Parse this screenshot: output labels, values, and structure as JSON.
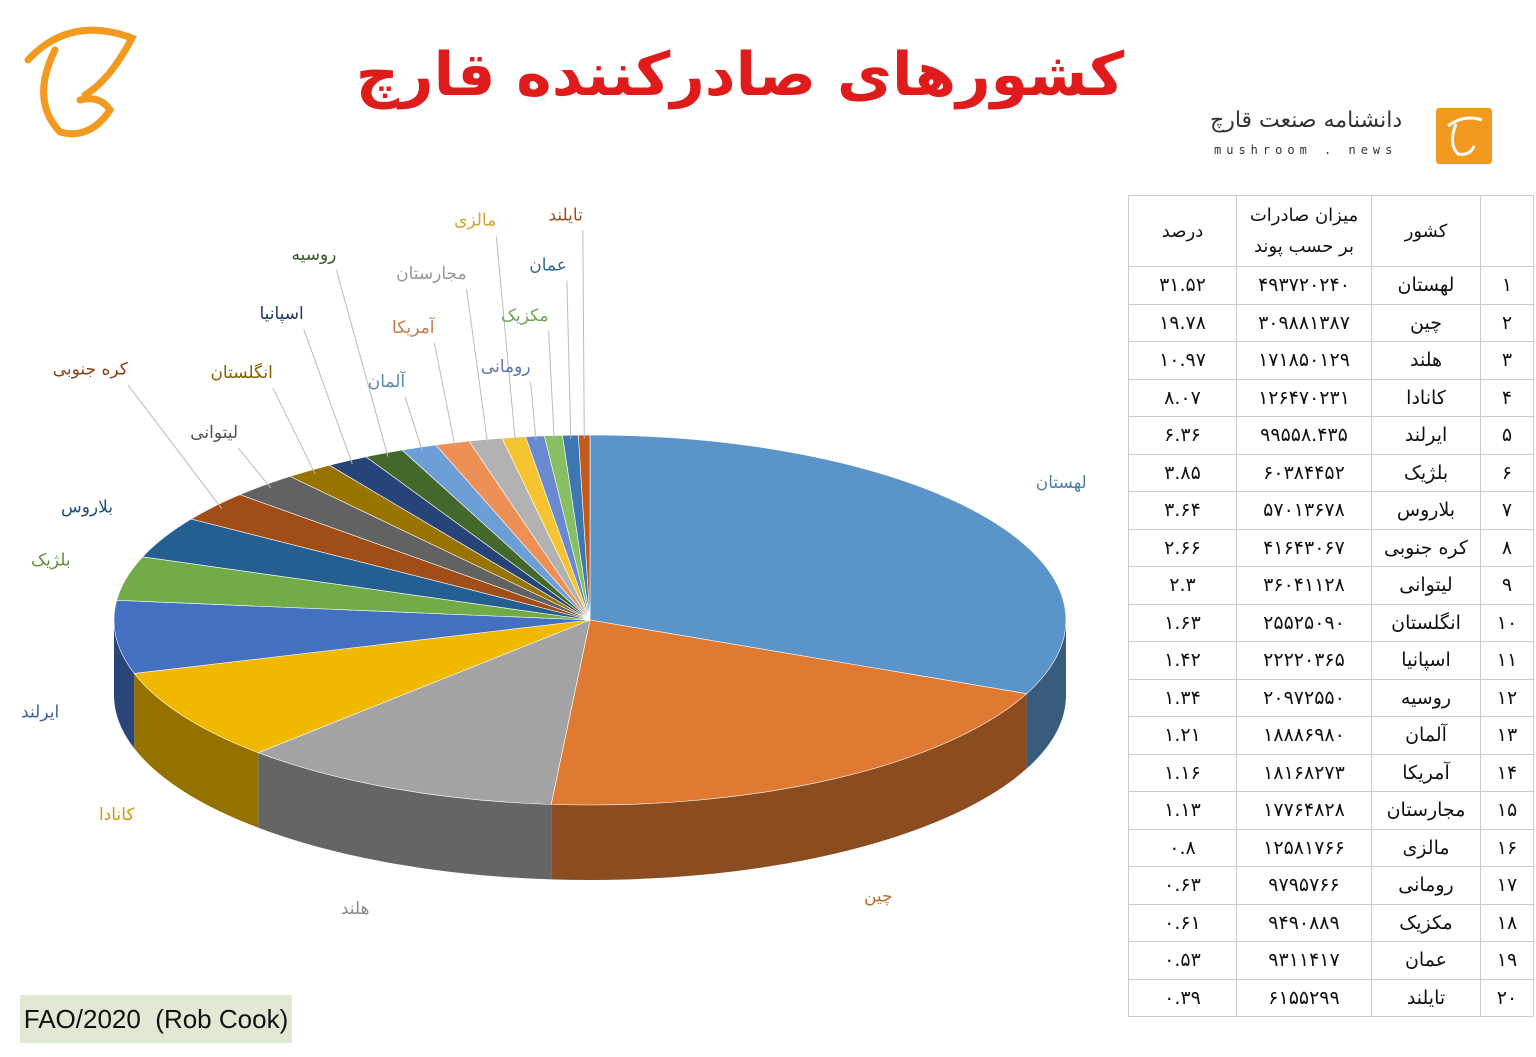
{
  "chart_data": {
    "type": "pie",
    "title": "کشورهای صادرکننده قارچ",
    "categories": [
      "لهستان",
      "چین",
      "هلند",
      "کانادا",
      "ایرلند",
      "بلژیک",
      "بلاروس",
      "کره جنوبی",
      "لیتوانی",
      "انگلستان",
      "اسپانیا",
      "روسیه",
      "آلمان",
      "آمریکا",
      "مجارستان",
      "مالزی",
      "رومانی",
      "مکزیک",
      "عمان",
      "تایلند"
    ],
    "values": [
      31.52,
      19.78,
      10.97,
      8.07,
      6.36,
      3.85,
      3.64,
      2.66,
      2.3,
      1.63,
      1.42,
      1.34,
      1.21,
      1.16,
      1.13,
      0.8,
      0.63,
      0.61,
      0.53,
      0.39
    ],
    "colors": [
      "#5b94c9",
      "#e07a33",
      "#a3a3a3",
      "#f1b800",
      "#4470c1",
      "#71ac48",
      "#255e91",
      "#a04d17",
      "#626262",
      "#997300",
      "#264478",
      "#43682b",
      "#6b9fd6",
      "#ee8f55",
      "#b2b2b2",
      "#f5c430",
      "#6a8ad0",
      "#88bf62",
      "#3d78b3",
      "#c25a1d"
    ]
  },
  "logo": {
    "name": "دانشنامه صنعت قارچ",
    "site": "mushroom . news"
  },
  "source": "FAO/2020  (Rob Cook)",
  "table": {
    "header": [
      "",
      "کشور",
      "میزان صادرات",
      "بر حسب پوند",
      "درصد"
    ],
    "rows": [
      [
        "۱",
        "لهستان",
        "۴۹۳۷۲۰۲۴۰",
        "۳۱.۵۲"
      ],
      [
        "۲",
        "چین",
        "۳۰۹۸۸۱۳۸۷",
        "۱۹.۷۸"
      ],
      [
        "۳",
        "هلند",
        "۱۷۱۸۵۰۱۲۹",
        "۱۰.۹۷"
      ],
      [
        "۴",
        "کانادا",
        "۱۲۶۴۷۰۲۳۱",
        "۸.۰۷"
      ],
      [
        "۵",
        "ایرلند",
        "۹۹۵۵۸.۴۳۵",
        "۶.۳۶"
      ],
      [
        "۶",
        "بلژیک",
        "۶۰۳۸۴۴۵۲",
        "۳.۸۵"
      ],
      [
        "۷",
        "بلاروس",
        "۵۷۰۱۳۶۷۸",
        "۳.۶۴"
      ],
      [
        "۸",
        "کره جنوبی",
        "۴۱۶۴۳۰۶۷",
        "۲.۶۶"
      ],
      [
        "۹",
        "لیتوانی",
        "۳۶۰۴۱۱۲۸",
        "۲.۳"
      ],
      [
        "۱۰",
        "انگلستان",
        "۲۵۵۲۵۰۹۰",
        "۱.۶۳"
      ],
      [
        "۱۱",
        "اسپانیا",
        "۲۲۲۲۰۳۶۵",
        "۱.۴۲"
      ],
      [
        "۱۲",
        "روسیه",
        "۲۰۹۷۲۵۵۰",
        "۱.۳۴"
      ],
      [
        "۱۳",
        "آلمان",
        "۱۸۸۸۶۹۸۰",
        "۱.۲۱"
      ],
      [
        "۱۴",
        "آمریکا",
        "۱۸۱۶۸۲۷۳",
        "۱.۱۶"
      ],
      [
        "۱۵",
        "مجارستان",
        "۱۷۷۶۴۸۲۸",
        "۱.۱۳"
      ],
      [
        "۱۶",
        "مالزی",
        "۱۲۵۸۱۷۶۶",
        "۰.۸"
      ],
      [
        "۱۷",
        "رومانی",
        "۹۷۹۵۷۶۶",
        "۰.۶۳"
      ],
      [
        "۱۸",
        "مکزیک",
        "۹۴۹۰۸۸۹",
        "۰.۶۱"
      ],
      [
        "۱۹",
        "عمان",
        "۹۳۱۱۴۱۷",
        "۰.۵۳"
      ],
      [
        "۲۰",
        "تایلند",
        "۶۱۵۵۲۹۹",
        "۰.۳۹"
      ]
    ]
  }
}
